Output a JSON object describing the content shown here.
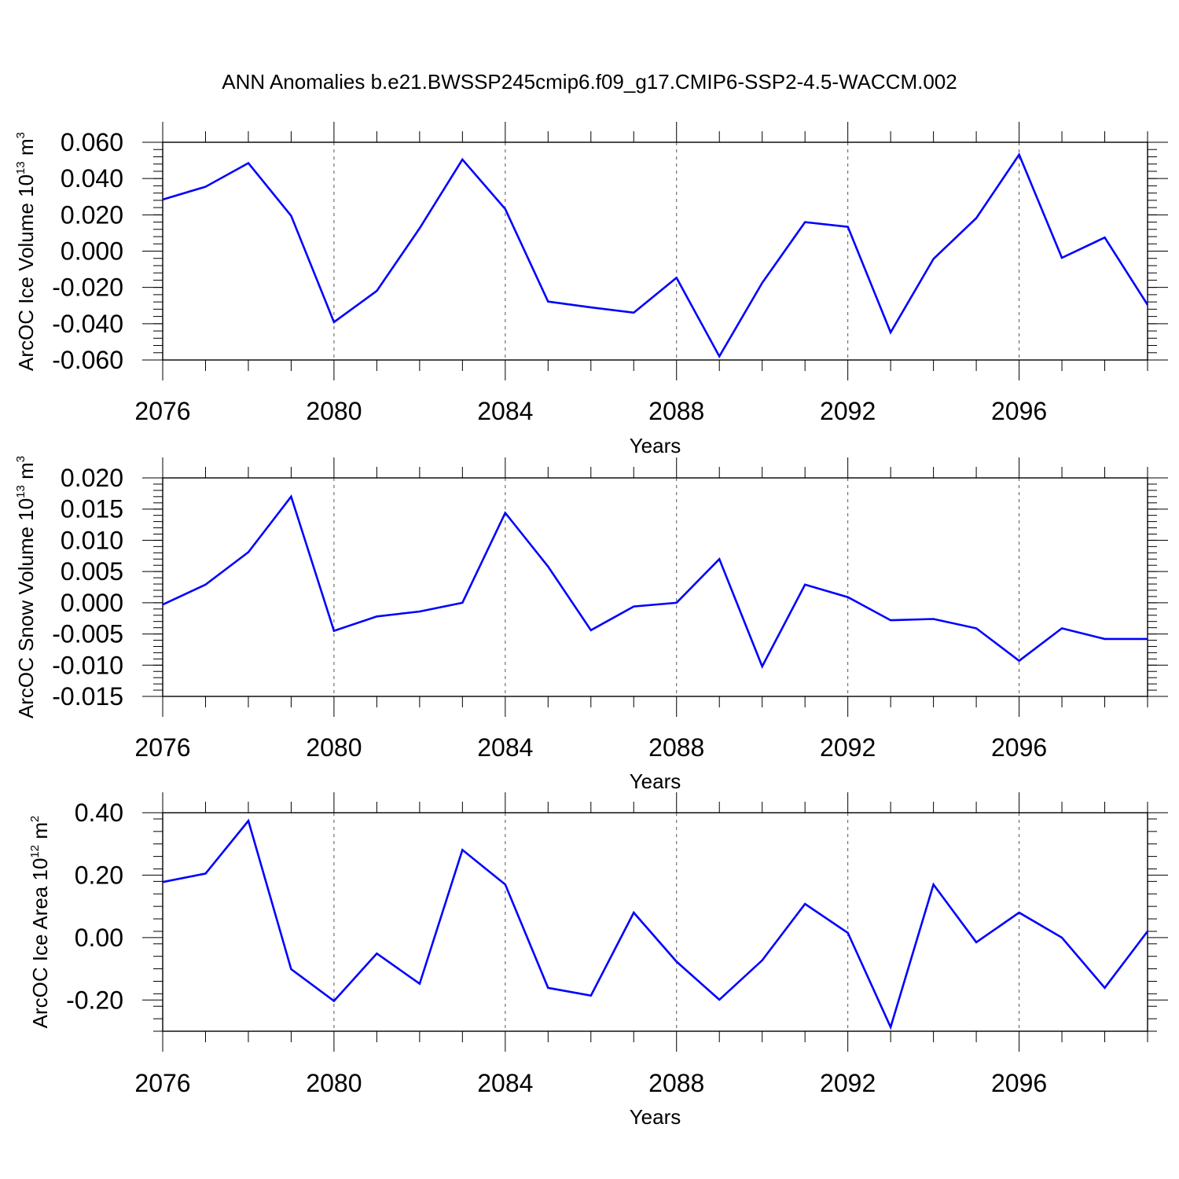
{
  "title": "ANN Anomalies b.e21.BWSSP245cmip6.f09_g17.CMIP6-SSP2-4.5-WACCM.002",
  "colors": {
    "line": "#0000ff",
    "axis": "#000000",
    "grid": "#555555"
  },
  "chart_data": [
    {
      "type": "line",
      "ylabel": {
        "main": "ArcOC Ice Volume 10",
        "sup": "13",
        "unit": " m",
        "unit_sup": "3"
      },
      "xlabel": "Years",
      "xlim": [
        2076,
        2099
      ],
      "xticks": [
        2076,
        2080,
        2084,
        2088,
        2092,
        2096
      ],
      "ylim": [
        -0.06,
        0.06
      ],
      "yticks": [
        -0.06,
        -0.04,
        -0.02,
        0.0,
        0.02,
        0.04,
        0.06
      ],
      "ytick_labels": [
        "-0.060",
        "-0.040",
        "-0.020",
        "0.000",
        "0.020",
        "0.040",
        "0.060"
      ],
      "grid": "vertical dashed at major x ticks",
      "x": [
        2076,
        2077,
        2078,
        2079,
        2080,
        2081,
        2082,
        2083,
        2084,
        2085,
        2086,
        2087,
        2088,
        2089,
        2090,
        2091,
        2092,
        2093,
        2094,
        2095,
        2096,
        2097,
        2098,
        2099
      ],
      "values": [
        0.0284,
        0.0355,
        0.0485,
        0.0195,
        -0.0391,
        -0.0219,
        0.0126,
        0.0505,
        0.0232,
        -0.0278,
        -0.031,
        -0.0339,
        -0.0147,
        -0.058,
        -0.0175,
        0.016,
        0.0134,
        -0.0448,
        -0.0043,
        0.0182,
        0.0532,
        -0.0037,
        0.0075,
        -0.0296
      ]
    },
    {
      "type": "line",
      "ylabel": {
        "main": "ArcOC Snow Volume 10",
        "sup": "13",
        "unit": " m",
        "unit_sup": "3"
      },
      "xlabel": "Years",
      "xlim": [
        2076,
        2099
      ],
      "xticks": [
        2076,
        2080,
        2084,
        2088,
        2092,
        2096
      ],
      "ylim": [
        -0.015,
        0.02
      ],
      "yticks": [
        -0.015,
        -0.01,
        -0.005,
        0.0,
        0.005,
        0.01,
        0.015,
        0.02
      ],
      "ytick_labels": [
        "-0.015",
        "-0.010",
        "-0.005",
        "0.000",
        "0.005",
        "0.010",
        "0.015",
        "0.020"
      ],
      "grid": "vertical dashed at major x ticks",
      "x": [
        2076,
        2077,
        2078,
        2079,
        2080,
        2081,
        2082,
        2083,
        2084,
        2085,
        2086,
        2087,
        2088,
        2089,
        2090,
        2091,
        2092,
        2093,
        2094,
        2095,
        2096,
        2097,
        2098,
        2099
      ],
      "values": [
        -0.0003,
        0.0029,
        0.0081,
        0.017,
        -0.0045,
        -0.0022,
        -0.0014,
        0.0,
        0.0144,
        0.0058,
        -0.0044,
        -0.0006,
        0.0,
        0.007,
        -0.0102,
        0.0029,
        0.0009,
        -0.0028,
        -0.0026,
        -0.0041,
        -0.0093,
        -0.0041,
        -0.0058,
        -0.0058
      ]
    },
    {
      "type": "line",
      "ylabel": {
        "main": "ArcOC Ice Area 10",
        "sup": "12",
        "unit": " m",
        "unit_sup": "2"
      },
      "xlabel": "Years",
      "xlim": [
        2076,
        2099
      ],
      "xticks": [
        2076,
        2080,
        2084,
        2088,
        2092,
        2096
      ],
      "ylim": [
        -0.3,
        0.4
      ],
      "yticks": [
        -0.2,
        0.0,
        0.2,
        0.4
      ],
      "ytick_labels": [
        "-0.20",
        "0.00",
        "0.20",
        "0.40"
      ],
      "minor_yticks": [
        -0.3,
        -0.25,
        -0.15,
        -0.1,
        -0.05,
        0.05,
        0.1,
        0.15,
        0.25,
        0.3,
        0.35
      ],
      "grid": "vertical dashed at major x ticks",
      "x": [
        2076,
        2077,
        2078,
        2079,
        2080,
        2081,
        2082,
        2083,
        2084,
        2085,
        2086,
        2087,
        2088,
        2089,
        2090,
        2091,
        2092,
        2093,
        2094,
        2095,
        2096,
        2097,
        2098,
        2099
      ],
      "values": [
        0.178,
        0.205,
        0.374,
        -0.101,
        -0.203,
        -0.051,
        -0.148,
        0.281,
        0.17,
        -0.161,
        -0.186,
        0.08,
        -0.077,
        -0.199,
        -0.073,
        0.108,
        0.015,
        -0.287,
        0.17,
        -0.015,
        0.08,
        0.0,
        -0.161,
        0.02
      ]
    }
  ]
}
